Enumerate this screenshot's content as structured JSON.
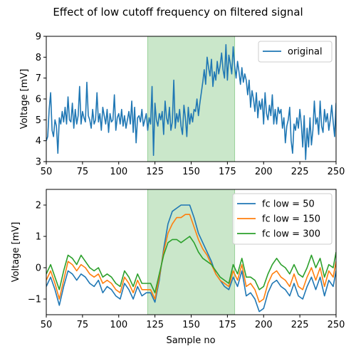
{
  "chart_data": {
    "title": "Effect of low cutoff frequency on filtered signal",
    "xlabel": "Sample no",
    "charts": [
      {
        "type": "line",
        "ylabel": "Voltage [mV]",
        "xlim": [
          50,
          250
        ],
        "ylim": [
          3,
          9
        ],
        "xticks": [
          50,
          75,
          100,
          125,
          150,
          175,
          200,
          225,
          250
        ],
        "yticks": [
          3,
          4,
          5,
          6,
          7,
          8,
          9
        ],
        "shaded_region": {
          "x": [
            120,
            180
          ],
          "color": "#2ca02c"
        },
        "legend_position": "top-right",
        "series": [
          {
            "name": "original",
            "color": "#1f77b4",
            "x0": 50,
            "values": [
              4.0,
              4.2,
              5.5,
              6.3,
              4.5,
              4.2,
              5.0,
              4.7,
              3.4,
              5.1,
              4.8,
              5.4,
              4.9,
              5.6,
              4.8,
              6.1,
              5.0,
              4.9,
              5.8,
              4.6,
              5.5,
              4.8,
              5.2,
              6.6,
              4.8,
              5.4,
              5.1,
              4.9,
              6.8,
              5.2,
              5.0,
              4.6,
              5.5,
              4.8,
              5.0,
              6.3,
              4.9,
              5.3,
              4.5,
              5.6,
              5.2,
              4.8,
              5.5,
              4.4,
              5.3,
              4.9,
              5.0,
              6.2,
              4.5,
              5.1,
              5.3,
              4.8,
              5.5,
              4.7,
              5.2,
              4.6,
              5.0,
              5.4,
              4.8,
              5.9,
              4.4,
              5.6,
              3.9,
              5.1,
              5.2,
              4.9,
              5.5,
              4.7,
              5.0,
              5.3,
              4.5,
              5.1,
              4.8,
              6.6,
              3.3,
              5.8,
              5.0,
              4.7,
              5.3,
              5.0,
              5.4,
              4.3,
              5.9,
              5.1,
              4.8,
              5.6,
              4.5,
              4.9,
              6.9,
              4.6,
              5.3,
              4.9,
              5.5,
              4.7,
              4.3,
              5.7,
              5.1,
              4.2,
              5.6,
              4.8,
              5.3,
              4.9,
              5.5,
              5.4,
              6.0,
              5.2,
              5.8,
              6.3,
              6.8,
              7.4,
              6.7,
              8.0,
              7.5,
              7.1,
              7.9,
              6.6,
              7.3,
              6.9,
              7.8,
              7.2,
              7.6,
              8.2,
              7.4,
              7.0,
              8.6,
              6.9,
              8.1,
              7.7,
              7.2,
              8.5,
              7.6,
              7.0,
              7.8,
              7.3,
              6.7,
              7.5,
              6.8,
              7.2,
              6.9,
              6.2,
              6.9,
              5.6,
              6.4,
              6.0,
              5.4,
              6.3,
              5.1,
              5.9,
              5.5,
              6.0,
              4.8,
              6.3,
              5.3,
              5.0,
              5.7,
              5.2,
              6.2,
              4.8,
              5.5,
              4.8,
              5.6,
              5.3,
              5.5,
              4.6,
              5.1,
              3.9,
              4.7,
              5.0,
              5.6,
              4.0,
              3.4,
              4.8,
              4.5,
              5.1,
              4.6,
              5.5,
              4.8,
              3.7,
              5.2,
              3.1,
              4.6,
              3.7,
              5.1,
              3.8,
              4.5,
              5.9,
              4.8,
              5.1,
              4.3,
              5.9,
              4.7,
              4.4,
              5.5,
              4.9,
              5.3,
              4.5,
              5.0,
              5.7,
              4.9,
              4.2,
              5.8,
              4.6,
              5.2,
              4.7,
              6.1,
              4.4,
              5.3,
              4.9,
              4.9,
              5.5,
              4.4,
              5.1,
              4.3,
              5.8,
              5.0,
              4.2,
              5.1,
              5.3,
              4.6,
              5.5,
              6.0
            ]
          }
        ]
      },
      {
        "type": "line",
        "ylabel": "Voltage [mV]",
        "xlim": [
          50,
          250
        ],
        "ylim": [
          -1.5,
          2.5
        ],
        "xticks": [
          50,
          75,
          100,
          125,
          150,
          175,
          200,
          225,
          250
        ],
        "yticks": [
          -1,
          0,
          1,
          2
        ],
        "shaded_region": {
          "x": [
            120,
            180
          ],
          "color": "#2ca02c"
        },
        "legend_position": "top-right",
        "series": [
          {
            "name": "fc low = 50",
            "color": "#1f77b4",
            "x": [
              50,
              53,
              56,
              59,
              62,
              65,
              68,
              71,
              74,
              77,
              80,
              83,
              86,
              89,
              92,
              95,
              98,
              101,
              104,
              107,
              110,
              113,
              116,
              119,
              122,
              125,
              128,
              131,
              134,
              137,
              140,
              143,
              146,
              149,
              152,
              155,
              158,
              161,
              164,
              167,
              170,
              173,
              176,
              179,
              182,
              185,
              188,
              191,
              194,
              197,
              200,
              203,
              206,
              209,
              212,
              215,
              218,
              221,
              224,
              227,
              230,
              233,
              236,
              239,
              242,
              245,
              248,
              250
            ],
            "values": [
              -0.6,
              -0.3,
              -0.7,
              -1.2,
              -0.6,
              -0.1,
              -0.2,
              -0.4,
              -0.2,
              -0.3,
              -0.5,
              -0.6,
              -0.4,
              -0.8,
              -0.6,
              -0.7,
              -0.9,
              -1.0,
              -0.5,
              -0.7,
              -1.0,
              -0.6,
              -0.9,
              -0.8,
              -0.8,
              -1.1,
              -0.4,
              0.6,
              1.4,
              1.8,
              1.9,
              2.0,
              2.0,
              2.0,
              1.6,
              1.1,
              0.8,
              0.5,
              0.2,
              -0.2,
              -0.4,
              -0.6,
              -0.7,
              -0.3,
              -0.6,
              -0.1,
              -0.9,
              -0.8,
              -1.0,
              -1.4,
              -1.3,
              -0.8,
              -0.5,
              -0.4,
              -0.6,
              -0.7,
              -0.9,
              -0.5,
              -0.9,
              -1.0,
              -0.6,
              -0.3,
              -0.7,
              -0.3,
              -0.9,
              -0.4,
              -0.6,
              -0.1
            ]
          },
          {
            "name": "fc low = 150",
            "color": "#ff7f0e",
            "x": [
              50,
              53,
              56,
              59,
              62,
              65,
              68,
              71,
              74,
              77,
              80,
              83,
              86,
              89,
              92,
              95,
              98,
              101,
              104,
              107,
              110,
              113,
              116,
              119,
              122,
              125,
              128,
              131,
              134,
              137,
              140,
              143,
              146,
              149,
              152,
              155,
              158,
              161,
              164,
              167,
              170,
              173,
              176,
              179,
              182,
              185,
              188,
              191,
              194,
              197,
              200,
              203,
              206,
              209,
              212,
              215,
              218,
              221,
              224,
              227,
              230,
              233,
              236,
              239,
              242,
              245,
              248,
              250
            ],
            "values": [
              -0.4,
              -0.1,
              -0.5,
              -1.0,
              -0.4,
              0.2,
              0.1,
              -0.1,
              0.1,
              0.0,
              -0.2,
              -0.3,
              -0.2,
              -0.5,
              -0.4,
              -0.5,
              -0.7,
              -0.8,
              -0.3,
              -0.5,
              -0.8,
              -0.4,
              -0.7,
              -0.7,
              -0.7,
              -1.0,
              -0.3,
              0.5,
              1.1,
              1.4,
              1.6,
              1.6,
              1.7,
              1.7,
              1.3,
              0.9,
              0.6,
              0.4,
              0.1,
              -0.2,
              -0.4,
              -0.5,
              -0.6,
              -0.1,
              -0.4,
              0.1,
              -0.6,
              -0.5,
              -0.7,
              -1.1,
              -1.0,
              -0.5,
              -0.2,
              -0.1,
              -0.3,
              -0.4,
              -0.6,
              -0.2,
              -0.6,
              -0.7,
              -0.3,
              0.0,
              -0.4,
              0.0,
              -0.6,
              -0.1,
              -0.3,
              0.2
            ]
          },
          {
            "name": "fc low = 300",
            "color": "#2ca02c",
            "x": [
              50,
              53,
              56,
              59,
              62,
              65,
              68,
              71,
              74,
              77,
              80,
              83,
              86,
              89,
              92,
              95,
              98,
              101,
              104,
              107,
              110,
              113,
              116,
              119,
              122,
              125,
              128,
              131,
              134,
              137,
              140,
              143,
              146,
              149,
              152,
              155,
              158,
              161,
              164,
              167,
              170,
              173,
              176,
              179,
              182,
              185,
              188,
              191,
              194,
              197,
              200,
              203,
              206,
              209,
              212,
              215,
              218,
              221,
              224,
              227,
              230,
              233,
              236,
              239,
              242,
              245,
              248,
              250
            ],
            "values": [
              -0.2,
              0.1,
              -0.3,
              -0.7,
              -0.1,
              0.4,
              0.3,
              0.1,
              0.4,
              0.2,
              0.0,
              -0.1,
              0.0,
              -0.3,
              -0.2,
              -0.3,
              -0.5,
              -0.6,
              -0.1,
              -0.3,
              -0.6,
              -0.2,
              -0.5,
              -0.5,
              -0.5,
              -0.8,
              -0.2,
              0.4,
              0.8,
              0.9,
              0.9,
              0.8,
              0.9,
              1.0,
              0.8,
              0.5,
              0.3,
              0.2,
              0.1,
              -0.1,
              -0.3,
              -0.4,
              -0.5,
              0.1,
              -0.2,
              0.3,
              -0.3,
              -0.3,
              -0.4,
              -0.7,
              -0.6,
              -0.2,
              0.1,
              0.3,
              0.1,
              0.0,
              -0.2,
              0.1,
              -0.2,
              -0.3,
              0.0,
              0.4,
              0.0,
              0.3,
              -0.3,
              0.1,
              0.0,
              0.5
            ]
          }
        ]
      }
    ]
  }
}
